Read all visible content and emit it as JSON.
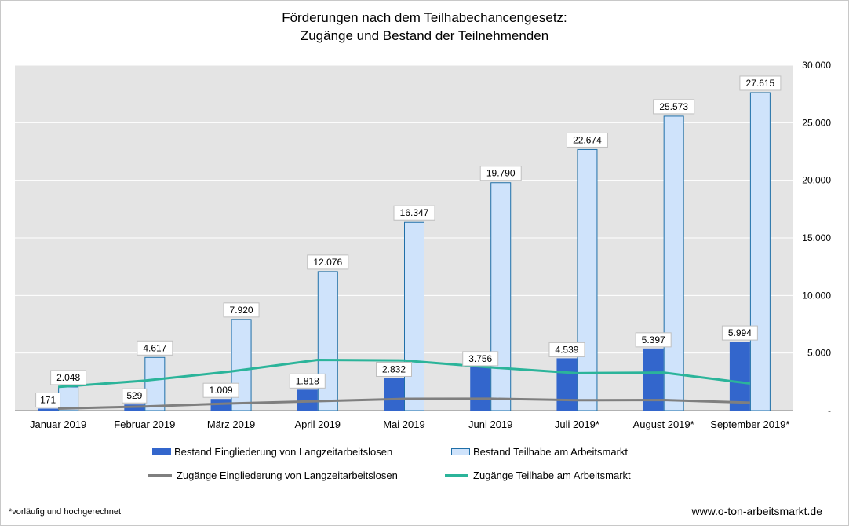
{
  "title_line1": "Förderungen nach dem Teilhabechancengesetz:",
  "title_line2": "Zugänge und Bestand der Teilnehmenden",
  "footnote": "*vorläufig und hochgerechnet",
  "source": "www.o-ton-arbeitsmarkt.de",
  "chart_data": {
    "type": "bar",
    "categories": [
      "Januar 2019",
      "Februar 2019",
      "März 2019",
      "April 2019",
      "Mai 2019",
      "Juni 2019",
      "Juli 2019*",
      "August 2019*",
      "September 2019*"
    ],
    "ylim": [
      0,
      30000
    ],
    "yticks": [
      0,
      5000,
      10000,
      15000,
      20000,
      25000,
      30000
    ],
    "ytick_labels": [
      "-",
      "5.000",
      "10.000",
      "15.000",
      "20.000",
      "25.000",
      "30.000"
    ],
    "y_axis_side": "right",
    "grid": true,
    "legend_position": "bottom",
    "series": [
      {
        "name": "Bestand Eingliederung von Langzeitarbeitslosen",
        "kind": "bar",
        "color": "#3366cc",
        "values": [
          171,
          529,
          1009,
          1818,
          2832,
          3756,
          4539,
          5397,
          5994
        ],
        "labels": [
          "171",
          "529",
          "1.009",
          "1.818",
          "2.832",
          "3.756",
          "4.539",
          "5.397",
          "5.994"
        ]
      },
      {
        "name": "Bestand Teilhabe am Arbeitsmarkt",
        "kind": "bar",
        "color": "#cfe3fb",
        "border_color": "#1f6fa8",
        "values": [
          2048,
          4617,
          7920,
          12076,
          16347,
          19790,
          22674,
          25573,
          27615
        ],
        "labels": [
          "2.048",
          "4.617",
          "7.920",
          "12.076",
          "16.347",
          "19.790",
          "22.674",
          "25.573",
          "27.615"
        ]
      },
      {
        "name": "Zugänge Eingliederung von Langzeitarbeitslosen",
        "kind": "line",
        "color": "#7f7f7f",
        "values": [
          170,
          360,
          620,
          820,
          1020,
          1030,
          900,
          920,
          690
        ]
      },
      {
        "name": "Zugänge Teilhabe am Arbeitsmarkt",
        "kind": "line",
        "color": "#2bb49a",
        "values": [
          2050,
          2600,
          3400,
          4400,
          4350,
          3750,
          3250,
          3300,
          2350
        ]
      }
    ]
  }
}
